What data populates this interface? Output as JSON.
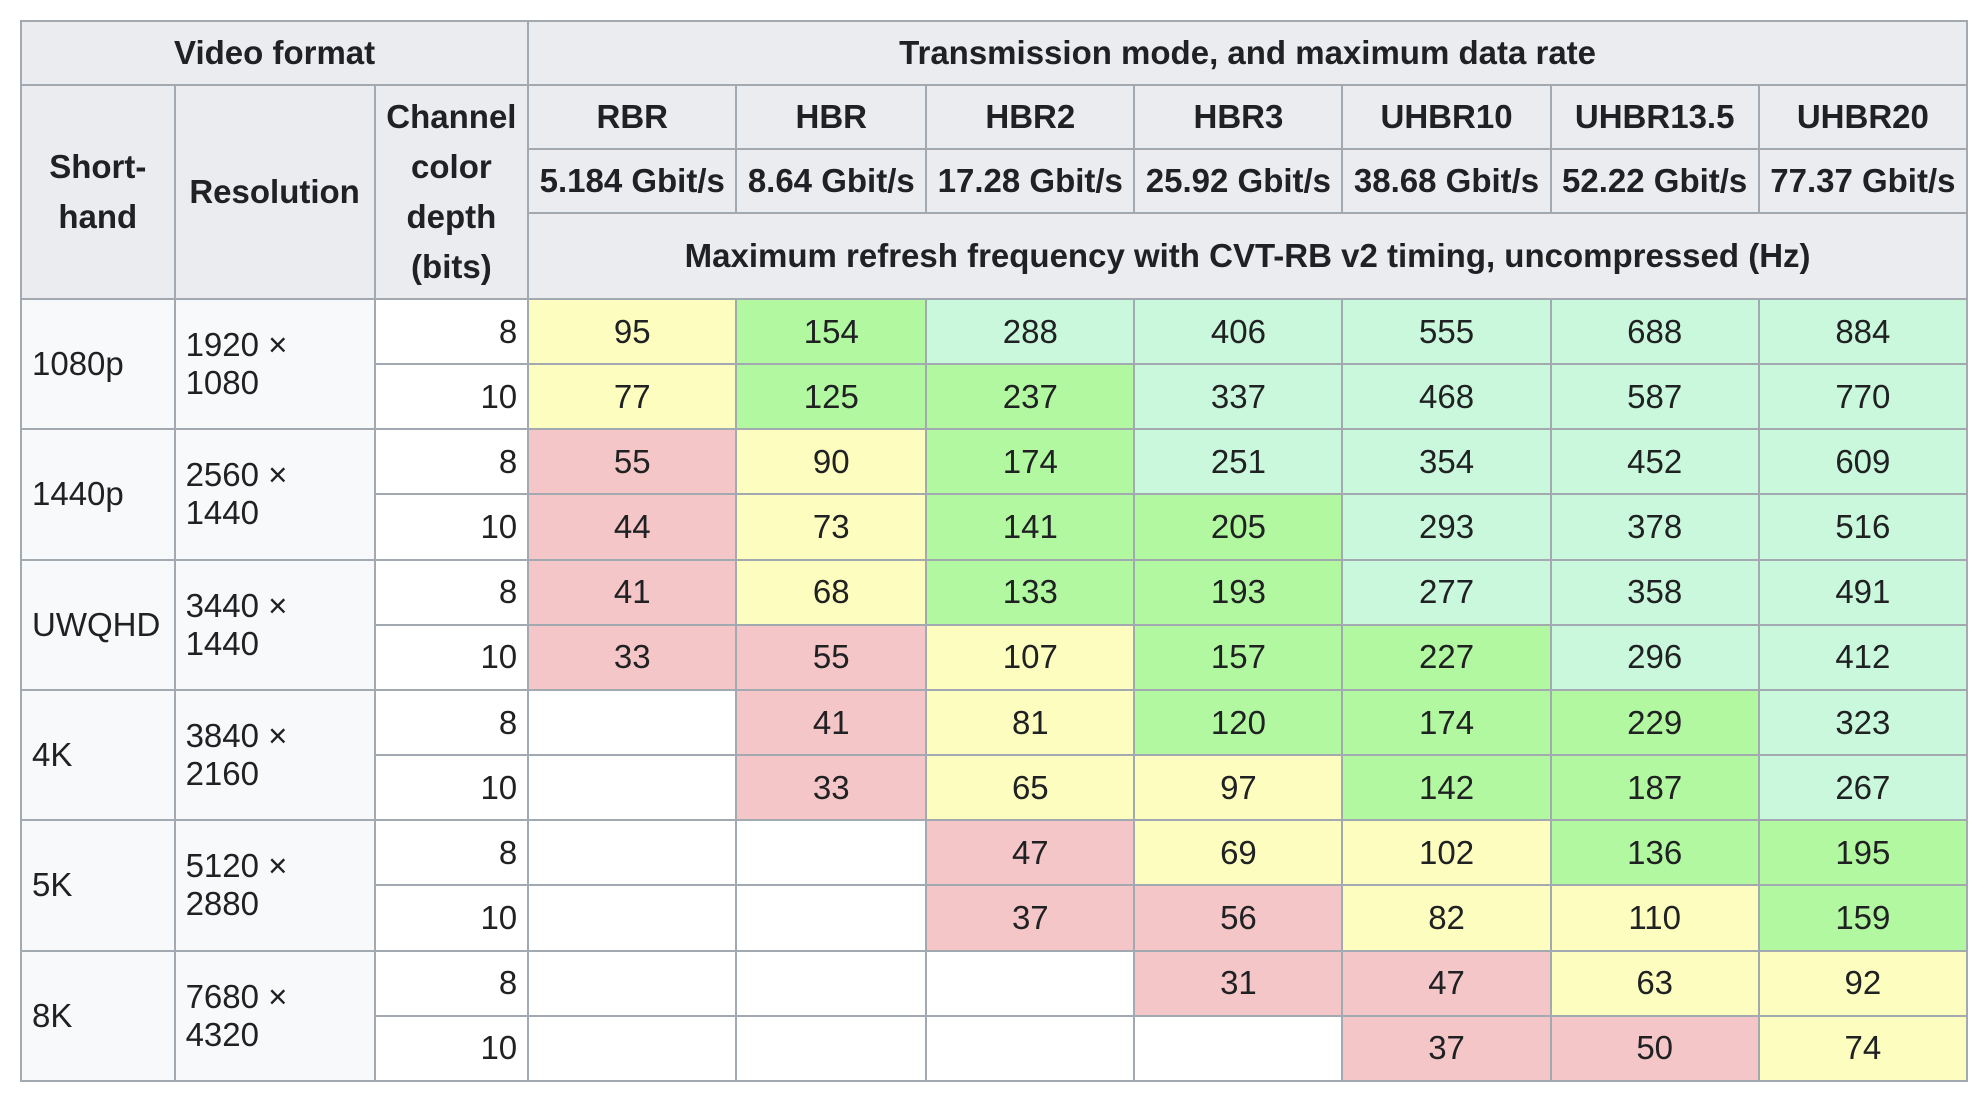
{
  "header": {
    "video_format": "Video format",
    "transmission": "Transmission mode, and maximum data rate",
    "shorthand": "Short-hand",
    "resolution": "Resolution",
    "depth": "Channel color depth (bits)",
    "modes": [
      "RBR",
      "HBR",
      "HBR2",
      "HBR3",
      "UHBR10",
      "UHBR13.5",
      "UHBR20"
    ],
    "rates": [
      "5.184 Gbit/s",
      "8.64 Gbit/s",
      "17.28 Gbit/s",
      "25.92 Gbit/s",
      "38.68 Gbit/s",
      "52.22 Gbit/s",
      "77.37 Gbit/s"
    ],
    "subtitle": "Maximum refresh frequency with CVT-RB v2 timing, uncompressed (Hz)"
  },
  "colors": {
    "red": "#f5c6c8",
    "yellow": "#fdfdbf",
    "green": "#b2f8a0",
    "teal": "#c9f8dc",
    "header_bg": "#eaecf0",
    "border": "#a2a9b1"
  },
  "groups": [
    {
      "shorthand": "1080p",
      "resolution": "1920 × 1080",
      "rows": [
        {
          "depth": "8",
          "values": [
            "95",
            "154",
            "288",
            "406",
            "555",
            "688",
            "884"
          ],
          "colors": [
            "y",
            "g",
            "t",
            "t",
            "t",
            "t",
            "t"
          ]
        },
        {
          "depth": "10",
          "values": [
            "77",
            "125",
            "237",
            "337",
            "468",
            "587",
            "770"
          ],
          "colors": [
            "y",
            "g",
            "g",
            "t",
            "t",
            "t",
            "t"
          ]
        }
      ]
    },
    {
      "shorthand": "1440p",
      "resolution": "2560 × 1440",
      "rows": [
        {
          "depth": "8",
          "values": [
            "55",
            "90",
            "174",
            "251",
            "354",
            "452",
            "609"
          ],
          "colors": [
            "r",
            "y",
            "g",
            "t",
            "t",
            "t",
            "t"
          ]
        },
        {
          "depth": "10",
          "values": [
            "44",
            "73",
            "141",
            "205",
            "293",
            "378",
            "516"
          ],
          "colors": [
            "r",
            "y",
            "g",
            "g",
            "t",
            "t",
            "t"
          ]
        }
      ]
    },
    {
      "shorthand": "UWQHD",
      "resolution": "3440 × 1440",
      "rows": [
        {
          "depth": "8",
          "values": [
            "41",
            "68",
            "133",
            "193",
            "277",
            "358",
            "491"
          ],
          "colors": [
            "r",
            "y",
            "g",
            "g",
            "t",
            "t",
            "t"
          ]
        },
        {
          "depth": "10",
          "values": [
            "33",
            "55",
            "107",
            "157",
            "227",
            "296",
            "412"
          ],
          "colors": [
            "r",
            "r",
            "y",
            "g",
            "g",
            "t",
            "t"
          ]
        }
      ]
    },
    {
      "shorthand": "4K",
      "resolution": "3840 × 2160",
      "rows": [
        {
          "depth": "8",
          "values": [
            "",
            "41",
            "81",
            "120",
            "174",
            "229",
            "323"
          ],
          "colors": [
            "w",
            "r",
            "y",
            "g",
            "g",
            "g",
            "t"
          ]
        },
        {
          "depth": "10",
          "values": [
            "",
            "33",
            "65",
            "97",
            "142",
            "187",
            "267"
          ],
          "colors": [
            "w",
            "r",
            "y",
            "y",
            "g",
            "g",
            "t"
          ]
        }
      ]
    },
    {
      "shorthand": "5K",
      "resolution": "5120 × 2880",
      "rows": [
        {
          "depth": "8",
          "values": [
            "",
            "",
            "47",
            "69",
            "102",
            "136",
            "195"
          ],
          "colors": [
            "w",
            "w",
            "r",
            "y",
            "y",
            "g",
            "g"
          ]
        },
        {
          "depth": "10",
          "values": [
            "",
            "",
            "37",
            "56",
            "82",
            "110",
            "159"
          ],
          "colors": [
            "w",
            "w",
            "r",
            "r",
            "y",
            "y",
            "g"
          ]
        }
      ]
    },
    {
      "shorthand": "8K",
      "resolution": "7680 × 4320",
      "rows": [
        {
          "depth": "8",
          "values": [
            "",
            "",
            "",
            "31",
            "47",
            "63",
            "92"
          ],
          "colors": [
            "w",
            "w",
            "w",
            "r",
            "r",
            "y",
            "y"
          ]
        },
        {
          "depth": "10",
          "values": [
            "",
            "",
            "",
            "",
            "37",
            "50",
            "74"
          ],
          "colors": [
            "w",
            "w",
            "w",
            "w",
            "r",
            "r",
            "y"
          ]
        }
      ]
    }
  ]
}
